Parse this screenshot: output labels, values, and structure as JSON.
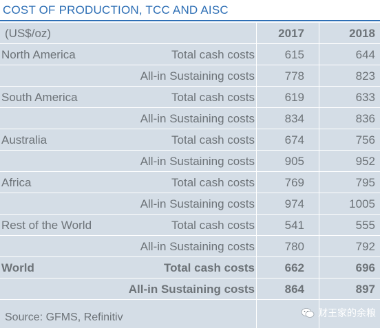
{
  "title": "COST OF PRODUCTION, TCC AND AISC",
  "header": {
    "unit": "(US$/oz)",
    "year1": "2017",
    "year2": "2018"
  },
  "rows": [
    {
      "region": "North America",
      "metric": "Total cash costs",
      "v2017": "615",
      "v2018": "644"
    },
    {
      "region": "",
      "metric": "All-in Sustaining costs",
      "v2017": "778",
      "v2018": "823"
    },
    {
      "region": "South America",
      "metric": "Total cash costs",
      "v2017": "619",
      "v2018": "633"
    },
    {
      "region": "",
      "metric": "All-in Sustaining costs",
      "v2017": "834",
      "v2018": "836"
    },
    {
      "region": "Australia",
      "metric": "Total cash costs",
      "v2017": "674",
      "v2018": "756"
    },
    {
      "region": "",
      "metric": "All-in Sustaining costs",
      "v2017": "905",
      "v2018": "952"
    },
    {
      "region": "Africa",
      "metric": "Total cash costs",
      "v2017": "769",
      "v2018": "795"
    },
    {
      "region": "",
      "metric": "All-in Sustaining costs",
      "v2017": "974",
      "v2018": "1005"
    },
    {
      "region": "Rest of the World",
      "metric": "Total cash costs",
      "v2017": "541",
      "v2018": "555"
    },
    {
      "region": "",
      "metric": "All-in Sustaining costs",
      "v2017": "780",
      "v2018": "792"
    },
    {
      "region": "World",
      "metric": "Total cash costs",
      "v2017": "662",
      "v2018": "696"
    },
    {
      "region": "",
      "metric": "All-in Sustaining costs",
      "v2017": "864",
      "v2018": "897"
    }
  ],
  "source": "Source: GFMS, Refinitiv",
  "watermark": "财王家的余粮",
  "colors": {
    "accent": "#2e6fb5",
    "table_bg": "#d4dde6",
    "text": "#6d7378"
  }
}
